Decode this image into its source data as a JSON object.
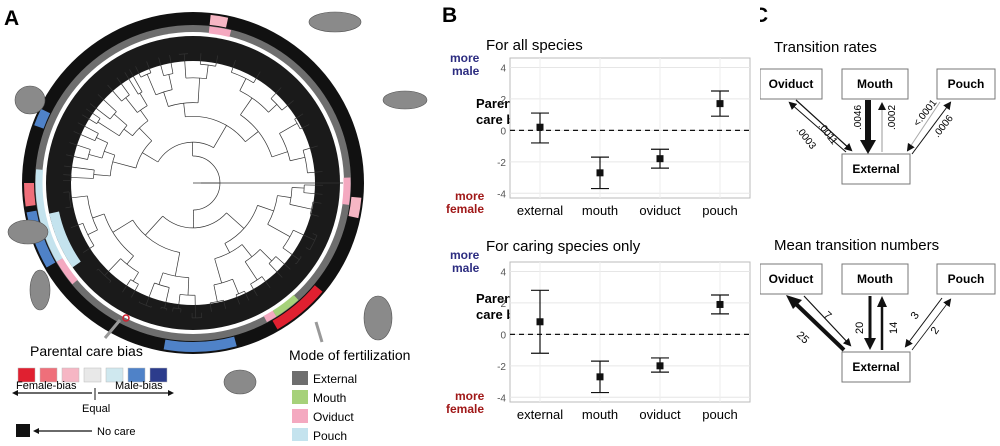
{
  "panel_labels": {
    "a": "A",
    "b": "B",
    "c": "C"
  },
  "panelA": {
    "parental_care_title": "Parental care bias",
    "bias_colors": [
      "#e02030",
      "#ef6f7a",
      "#f6b6c4",
      "#e8e8e8",
      "#cfe8ef",
      "#4f82c8",
      "#2c3c8c"
    ],
    "female_bias": "Female-bias",
    "equal": "Equal",
    "male_bias": "Male-bias",
    "no_care": "No care",
    "fert_title": "Mode of fertilization",
    "fert_legend": [
      {
        "label": "External",
        "color": "#6e6e6e"
      },
      {
        "label": "Mouth",
        "color": "#a6d17a"
      },
      {
        "label": "Oviduct",
        "color": "#f4a9c0"
      },
      {
        "label": "Pouch",
        "color": "#c4e3ee"
      }
    ]
  },
  "panelB": {
    "top_title": "For all species",
    "bottom_title": "For caring species only",
    "more_male": [
      "more",
      "male"
    ],
    "more_female": [
      "more",
      "female"
    ],
    "ylabel": [
      "Parental",
      "care bias"
    ]
  },
  "chart_data": [
    {
      "type": "scatter",
      "title": "For all species",
      "xlabel": "",
      "ylabel": "Parental care bias",
      "categories": [
        "external",
        "mouth",
        "oviduct",
        "pouch"
      ],
      "values": [
        0.2,
        -2.7,
        -1.8,
        1.7
      ],
      "lower": [
        -0.8,
        -3.7,
        -2.4,
        0.9
      ],
      "upper": [
        1.1,
        -1.7,
        -1.2,
        2.5
      ],
      "ylim": [
        -4.3,
        4.6
      ],
      "yticks": [
        -4,
        -2,
        0,
        2,
        4
      ],
      "reference_line": 0,
      "grid": true
    },
    {
      "type": "scatter",
      "title": "For caring species only",
      "xlabel": "",
      "ylabel": "Parental care bias",
      "categories": [
        "external",
        "mouth",
        "oviduct",
        "pouch"
      ],
      "values": [
        0.8,
        -2.7,
        -2.0,
        1.9
      ],
      "lower": [
        -1.2,
        -3.7,
        -2.4,
        1.3
      ],
      "upper": [
        2.8,
        -1.7,
        -1.5,
        2.5
      ],
      "ylim": [
        -4.3,
        4.6
      ],
      "yticks": [
        -4,
        -2,
        0,
        2,
        4
      ],
      "reference_line": 0,
      "grid": true
    }
  ],
  "panelC": {
    "top_title": "Transition rates",
    "bottom_title": "Mean transition numbers",
    "nodes": {
      "oviduct": "Oviduct",
      "mouth": "Mouth",
      "pouch": "Pouch",
      "external": "External"
    },
    "rates": {
      "ext_to_ovi": ".0011",
      "ovi_to_ext": ".0003",
      "mouth_to_ext": ".0046",
      "ext_to_mouth": ".0002",
      "pouch_to_ext": "<.0001",
      "ext_to_pouch": ".0006"
    },
    "counts": {
      "ext_to_ovi": "25",
      "ovi_to_ext": "7",
      "mouth_to_ext": "20",
      "ext_to_mouth": "14",
      "pouch_to_ext": "3",
      "ext_to_pouch": "2"
    }
  }
}
